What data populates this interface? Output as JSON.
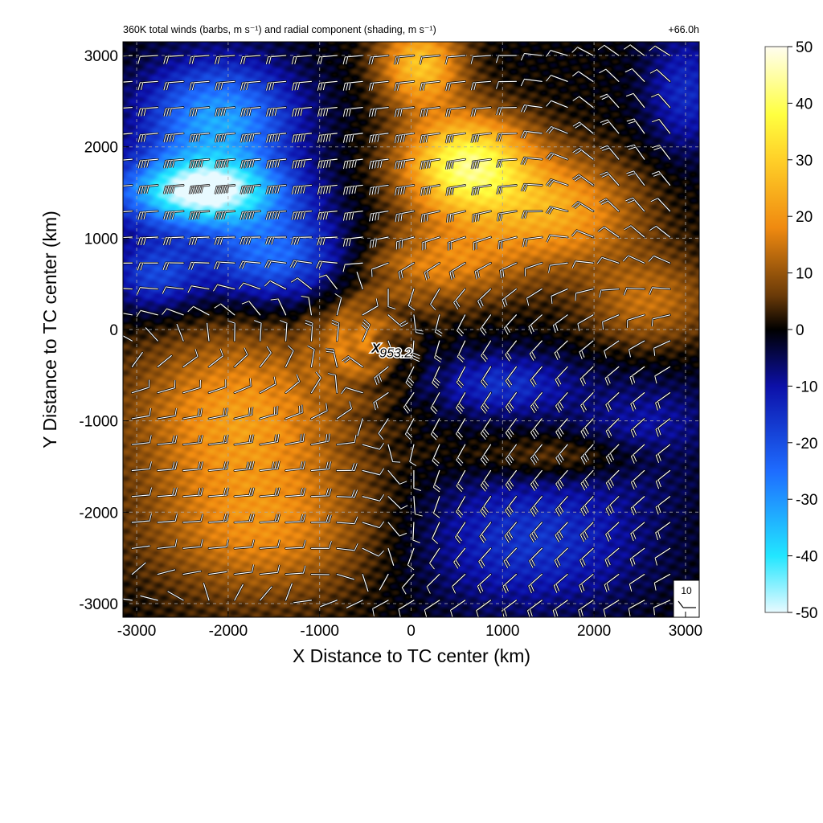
{
  "chart_data": {
    "type": "heatmap",
    "title": "360K total winds (barbs, m s⁻¹) and radial component (shading, m s⁻¹)",
    "forecast_time": "+66.0h",
    "xlabel": "X Distance to TC center (km)",
    "ylabel": "Y Distance to TC center (km)",
    "xlim": [
      -3150,
      3150
    ],
    "ylim": [
      -3150,
      3150
    ],
    "xticks": [
      -3000,
      -2000,
      -1000,
      0,
      1000,
      2000,
      3000
    ],
    "yticks": [
      -3000,
      -2000,
      -1000,
      0,
      1000,
      2000,
      3000
    ],
    "grid": true,
    "colorbar": {
      "vmin": -50,
      "vmax": 50,
      "ticks": [
        50,
        40,
        30,
        20,
        10,
        0,
        -10,
        -20,
        -30,
        -40,
        -50
      ],
      "colors": [
        "#e8faff",
        "#22e6ff",
        "#1e6cff",
        "#0c10a8",
        "#000000",
        "#6a3a08",
        "#f08a10",
        "#ffd028",
        "#ffff40",
        "#fffdf0"
      ],
      "color_stops": [
        -50,
        -40,
        -25,
        -10,
        0,
        6,
        18,
        30,
        38,
        50
      ]
    },
    "center_marker": {
      "x_km": -380,
      "y_km": -200,
      "label": "953.2"
    },
    "barb_reference": {
      "label": "10"
    },
    "features": [
      {
        "name": "inflow-north-west",
        "sign": "negative",
        "x_km": -2200,
        "y_km": 1500,
        "peak": -48
      },
      {
        "name": "inflow-north-west-2",
        "sign": "negative",
        "x_km": -2000,
        "y_km": 2300,
        "peak": -30
      },
      {
        "name": "outflow-north",
        "sign": "positive",
        "x_km": 700,
        "y_km": 1800,
        "peak": 38
      },
      {
        "name": "outflow-north-east",
        "sign": "positive",
        "x_km": 1800,
        "y_km": 1200,
        "peak": 22
      },
      {
        "name": "outflow-south-west",
        "sign": "positive",
        "x_km": -1800,
        "y_km": -1500,
        "peak": 20
      },
      {
        "name": "inflow-south-east",
        "sign": "negative",
        "x_km": 1500,
        "y_km": -2200,
        "peak": -15
      },
      {
        "name": "inflow-east",
        "sign": "negative",
        "x_km": 1200,
        "y_km": -700,
        "peak": -14
      }
    ]
  }
}
